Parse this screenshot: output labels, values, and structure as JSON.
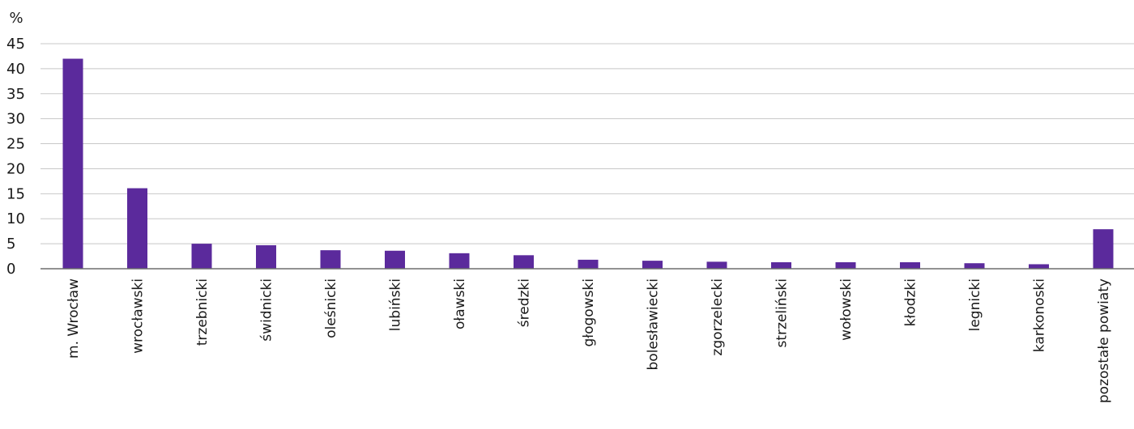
{
  "chart_data": {
    "type": "bar",
    "y_unit_label": "%",
    "categories": [
      "m. Wrocław",
      "wrocławski",
      "trzebnicki",
      "świdnicki",
      "oleśnicki",
      "lubiński",
      "oławski",
      "średzki",
      "głogowski",
      "bolesławiecki",
      "zgorzelecki",
      "strzeliński",
      "wołowski",
      "kłodzki",
      "legnicki",
      "karkonoski",
      "pozostałe powiaty"
    ],
    "values": [
      42,
      16.1,
      5,
      4.7,
      3.7,
      3.6,
      3.1,
      2.7,
      1.8,
      1.6,
      1.4,
      1.3,
      1.3,
      1.3,
      1.1,
      0.9,
      7.9
    ],
    "yticks": [
      0,
      5,
      10,
      15,
      20,
      25,
      30,
      35,
      40,
      45
    ],
    "ylim": [
      0,
      45
    ],
    "grid": true,
    "legend": false,
    "colors": {
      "bar": "#5b2a9c",
      "grid": "#c8c8c8",
      "axis": "#6e6e6e"
    }
  }
}
